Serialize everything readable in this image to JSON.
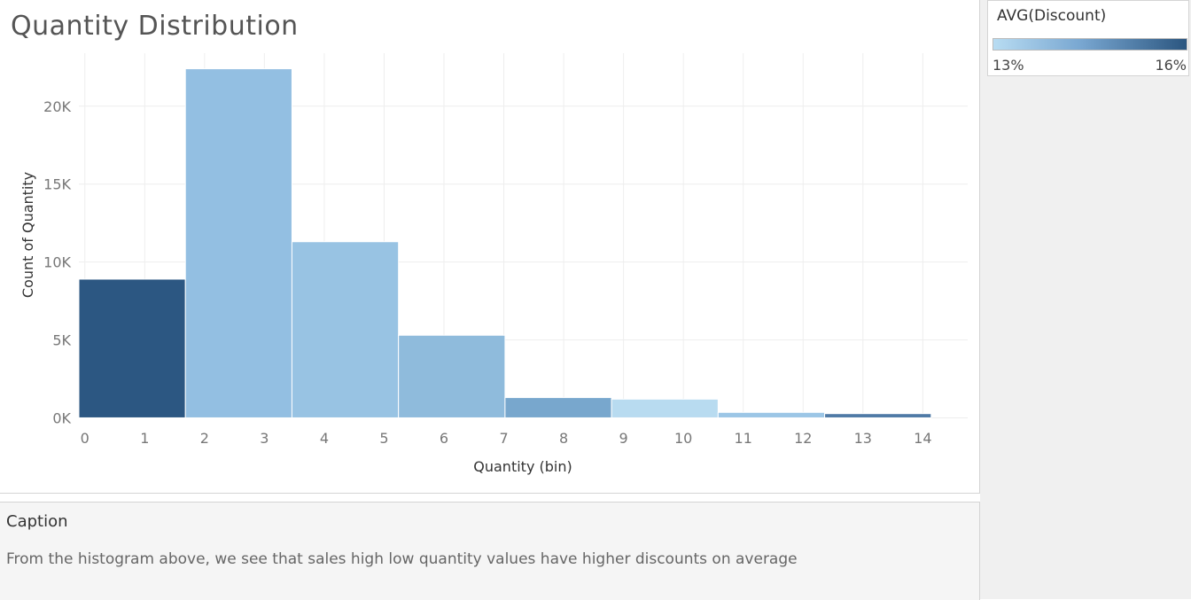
{
  "chart_data": {
    "type": "bar",
    "title": "Quantity Distribution",
    "xlabel": "Quantity (bin)",
    "ylabel": "Count of Quantity",
    "x_ticks": [
      0,
      1,
      2,
      3,
      4,
      5,
      6,
      7,
      8,
      9,
      10,
      11,
      12,
      13,
      14
    ],
    "y_ticks": [
      {
        "value": 0,
        "label": "0K"
      },
      {
        "value": 5000,
        "label": "5K"
      },
      {
        "value": 10000,
        "label": "10K"
      },
      {
        "value": 15000,
        "label": "15K"
      },
      {
        "value": 20000,
        "label": "20K"
      }
    ],
    "xlim": [
      -0.1,
      14.75
    ],
    "ylim": [
      -600,
      23400
    ],
    "bin_width": 1.78,
    "bins": [
      {
        "start": -0.1,
        "count": 8900,
        "avg_discount": 0.16,
        "color": "#2c5782"
      },
      {
        "start": 1.68,
        "count": 22400,
        "avg_discount": 0.139,
        "color": "#93bfe2"
      },
      {
        "start": 3.46,
        "count": 11300,
        "avg_discount": 0.139,
        "color": "#98c3e3"
      },
      {
        "start": 5.24,
        "count": 5300,
        "avg_discount": 0.14,
        "color": "#8fbbdc"
      },
      {
        "start": 7.02,
        "count": 1300,
        "avg_discount": 0.148,
        "color": "#78a7cd"
      },
      {
        "start": 8.8,
        "count": 1200,
        "avg_discount": 0.131,
        "color": "#b8dbf0"
      },
      {
        "start": 10.58,
        "count": 350,
        "avg_discount": 0.137,
        "color": "#9cc6e6"
      },
      {
        "start": 12.36,
        "count": 270,
        "avg_discount": 0.154,
        "color": "#4f7aa6"
      }
    ]
  },
  "legend": {
    "title": "AVG(Discount)",
    "min_label": "13%",
    "max_label": "16%",
    "color_min": "#b8dcf2",
    "color_max": "#2b5680"
  },
  "caption": {
    "title": "Caption",
    "text": "From the histogram above, we see that sales high low quantity values have higher discounts on average"
  }
}
